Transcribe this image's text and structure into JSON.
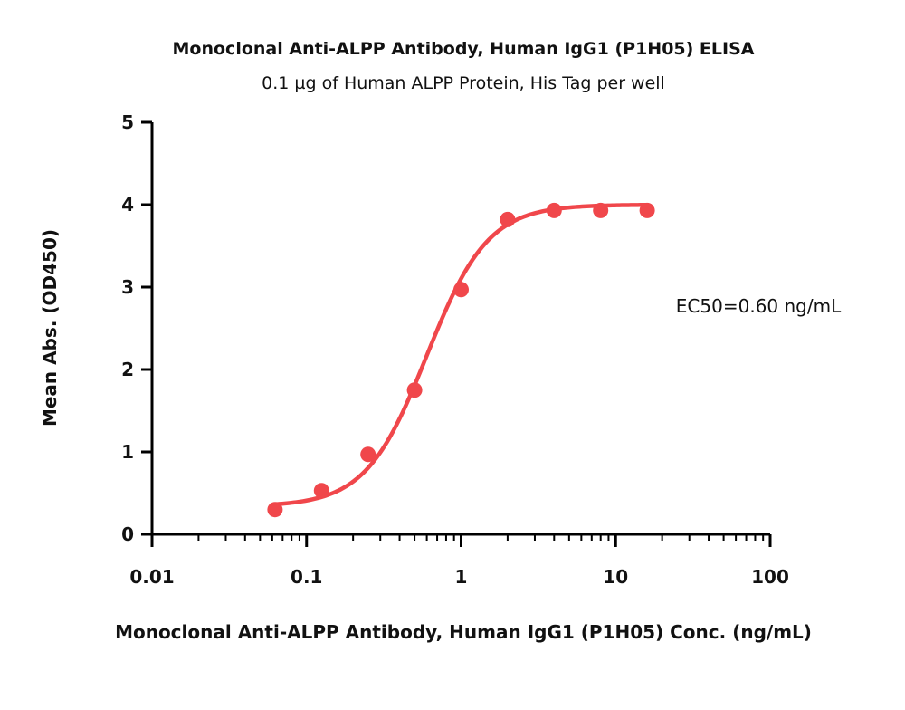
{
  "chart_data": {
    "type": "scatter",
    "title": "Monoclonal Anti-ALPP Antibody, Human IgG1 (P1H05) ELISA",
    "subtitle": "0.1 µg of Human ALPP Protein, His Tag per well",
    "xlabel": "Monoclonal Anti-ALPP Antibody, Human IgG1 (P1H05) Conc. (ng/mL)",
    "ylabel": "Mean Abs. (OD450)",
    "xscale": "log",
    "xlim": [
      0.01,
      100
    ],
    "ylim": [
      0,
      5
    ],
    "xticks": [
      0.01,
      0.1,
      1,
      10,
      100
    ],
    "xtick_labels": [
      "0.01",
      "0.1",
      "1",
      "10",
      "100"
    ],
    "yticks": [
      0,
      1,
      2,
      3,
      4,
      5
    ],
    "ytick_labels": [
      "0",
      "1",
      "2",
      "3",
      "4",
      "5"
    ],
    "grid": false,
    "series": [
      {
        "color": "#f0474b",
        "x": [
          0.0625,
          0.125,
          0.25,
          0.5,
          1,
          2,
          4,
          8,
          16
        ],
        "y": [
          0.3,
          0.53,
          0.97,
          1.75,
          2.97,
          3.82,
          3.93,
          3.93,
          3.93
        ],
        "fit": {
          "model": "4PL",
          "bottom": 0.34,
          "top": 4.0,
          "ec50": 0.6,
          "hill": 2.2
        }
      }
    ],
    "annotations": [
      {
        "text": "EC50=0.60 ng/mL"
      }
    ]
  }
}
